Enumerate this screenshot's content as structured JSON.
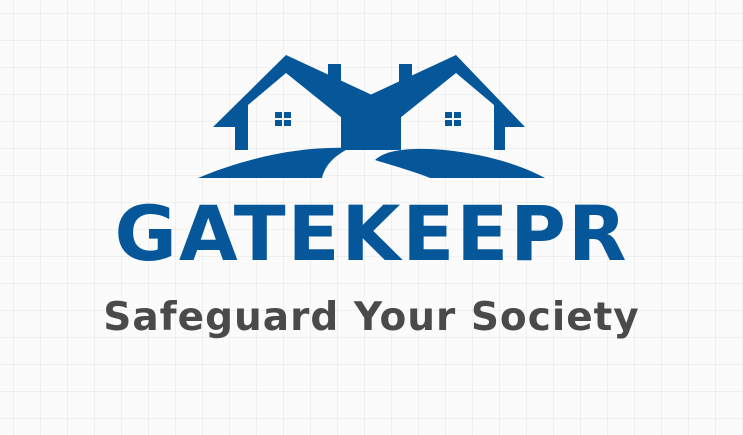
{
  "logo": {
    "name": "GATEKEEPR",
    "tagline": "Safeguard Your Society",
    "emblem_icon": "twin-houses-icon"
  },
  "colors": {
    "brand": "#05579a",
    "tagline": "#4a4a4a",
    "background": "#fbfbfb"
  }
}
